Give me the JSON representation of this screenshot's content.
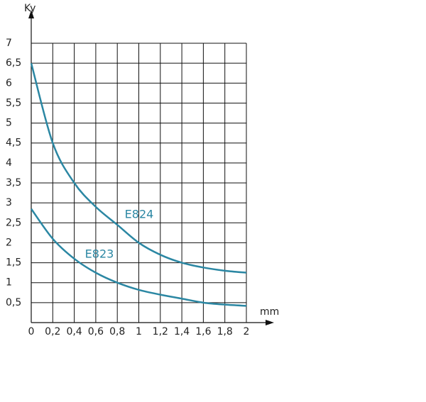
{
  "chart_data": {
    "type": "line",
    "x_label": "mm",
    "y_label": "Ky",
    "x": [
      0,
      0.2,
      0.4,
      0.6,
      0.8,
      1,
      1.2,
      1.4,
      1.6,
      1.8,
      2
    ],
    "series": [
      {
        "name": "E824",
        "color": "#2b87a3",
        "values": [
          6.5,
          4.5,
          3.5,
          2.9,
          2.45,
          2.0,
          1.7,
          1.5,
          1.38,
          1.3,
          1.25
        ]
      },
      {
        "name": "E823",
        "color": "#2b87a3",
        "values": [
          2.85,
          2.1,
          1.6,
          1.25,
          1.0,
          0.82,
          0.7,
          0.6,
          0.5,
          0.45,
          0.42
        ]
      }
    ],
    "xlim": [
      0,
      2
    ],
    "xticks": [
      0,
      {
        "value": 0.2,
        "label": "0,2"
      },
      {
        "value": 0.4,
        "label": "0,4"
      },
      {
        "value": 0.6,
        "label": "0,6"
      },
      {
        "value": 0.8,
        "label": "0,8"
      },
      1,
      {
        "value": 1.2,
        "label": "1,2"
      },
      {
        "value": 1.4,
        "label": "1,4"
      },
      {
        "value": 1.6,
        "label": "1,6"
      },
      {
        "value": 1.8,
        "label": "1,8"
      },
      2
    ],
    "ylim": [
      0,
      7
    ],
    "yticks": [
      {
        "value": 0.5,
        "label": "0,5"
      },
      1,
      {
        "value": 1.5,
        "label": "1,5"
      },
      2,
      {
        "value": 2.5,
        "label": "2,5"
      },
      3,
      {
        "value": 3.5,
        "label": "3,5"
      },
      4,
      {
        "value": 4.5,
        "label": "4,5"
      },
      5,
      {
        "value": 5.5,
        "label": "5,5"
      },
      6,
      {
        "value": 6.5,
        "label": "6,5"
      },
      7
    ],
    "grid": true
  }
}
